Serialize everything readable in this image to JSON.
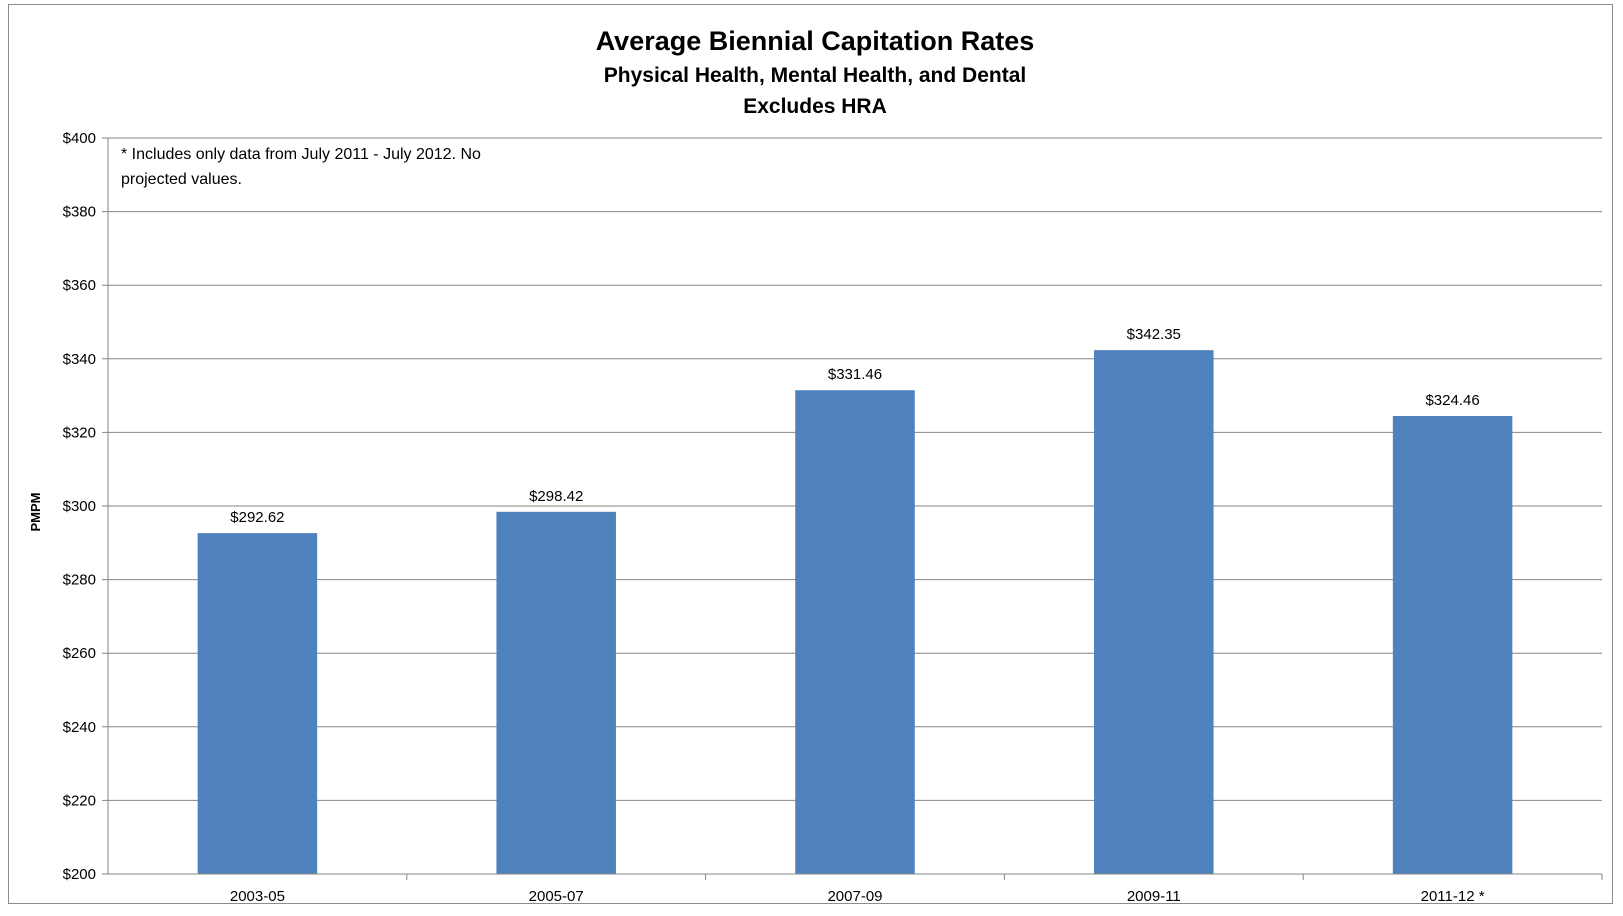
{
  "chart_data": {
    "type": "bar",
    "title": "Average Biennial Capitation Rates",
    "subtitle_lines": [
      "Physical Health, Mental Health, and Dental",
      "Excludes HRA"
    ],
    "categories": [
      "2003-05",
      "2005-07",
      "2007-09",
      "2009-11",
      "2011-12 *"
    ],
    "values": [
      292.62,
      298.42,
      331.46,
      342.35,
      324.46
    ],
    "data_labels": [
      "$292.62",
      "$298.42",
      "$331.46",
      "$342.35",
      "$324.46"
    ],
    "xlabel": "",
    "ylabel": "PMPM",
    "ylim": [
      200,
      400
    ],
    "yticks": [
      200,
      220,
      240,
      260,
      280,
      300,
      320,
      340,
      360,
      380,
      400
    ],
    "ytick_labels": [
      "$200",
      "$220",
      "$240",
      "$260",
      "$280",
      "$300",
      "$320",
      "$340",
      "$360",
      "$380",
      "$400"
    ],
    "grid": true,
    "legend": "none",
    "bar_color": "#4f81bd",
    "grid_color": "#868686",
    "note_lines": [
      "* Includes only data from July 2011 - July 2012.  No",
      "projected values."
    ]
  }
}
